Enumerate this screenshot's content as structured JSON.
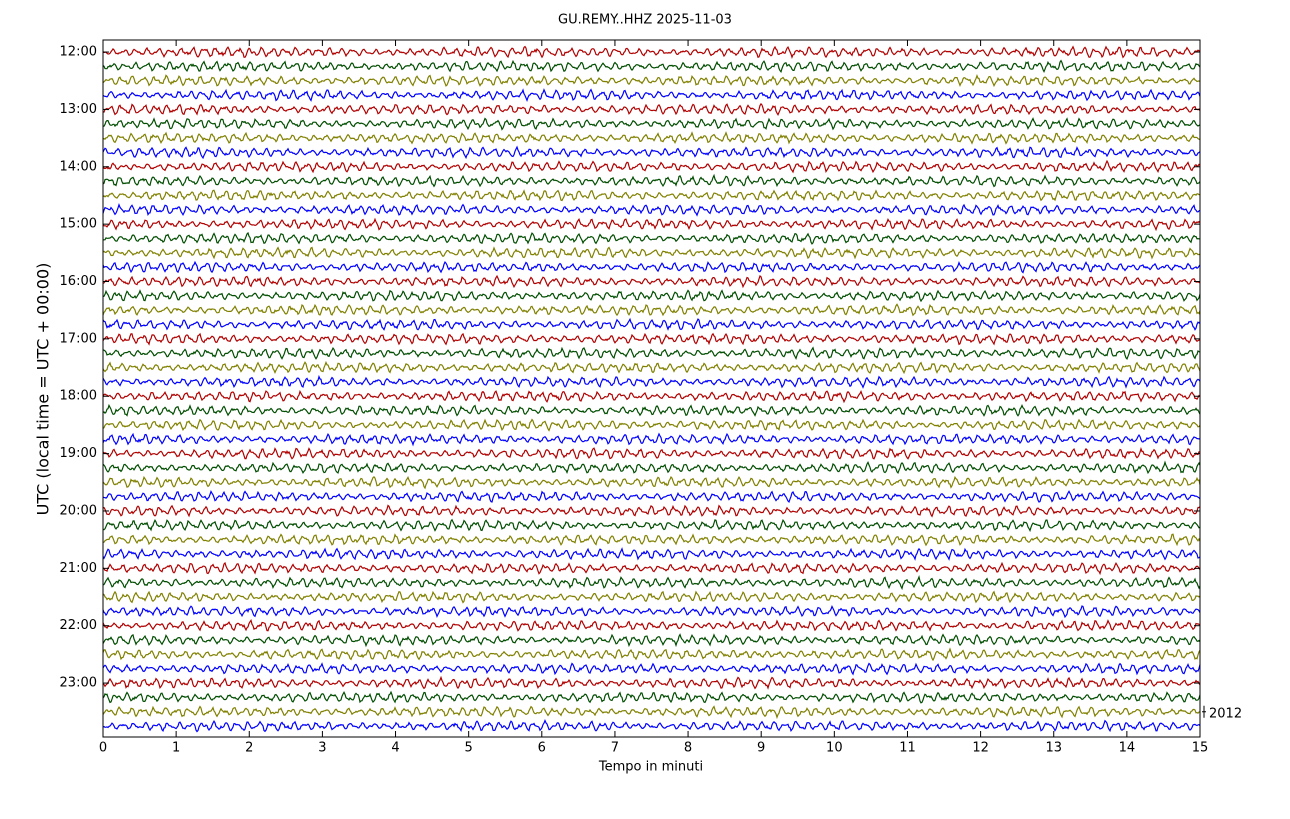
{
  "chart_data": {
    "type": "helicorder",
    "title": "GU.REMY..HHZ 2025-11-03",
    "xlabel": "Tempo in minuti",
    "ylabel": "UTC (local time = UTC + 00:00)",
    "xlim": [
      0,
      15
    ],
    "xticks": [
      0,
      1,
      2,
      3,
      4,
      5,
      6,
      7,
      8,
      9,
      10,
      11,
      12,
      13,
      14,
      15
    ],
    "ylim": [
      11.79,
      23.94
    ],
    "yticks": [
      {
        "value": 12,
        "label": "12:00"
      },
      {
        "value": 13,
        "label": "13:00"
      },
      {
        "value": 14,
        "label": "14:00"
      },
      {
        "value": 15,
        "label": "15:00"
      },
      {
        "value": 16,
        "label": "16:00"
      },
      {
        "value": 17,
        "label": "17:00"
      },
      {
        "value": 18,
        "label": "18:00"
      },
      {
        "value": 19,
        "label": "19:00"
      },
      {
        "value": 20,
        "label": "20:00"
      },
      {
        "value": 21,
        "label": "21:00"
      },
      {
        "value": 22,
        "label": "22:00"
      },
      {
        "value": 23,
        "label": "23:00"
      }
    ],
    "row_interval": 0.25,
    "colors": [
      "#b00000",
      "#004d00",
      "#808000",
      "#0000ff"
    ],
    "scale_label": "2012"
  }
}
